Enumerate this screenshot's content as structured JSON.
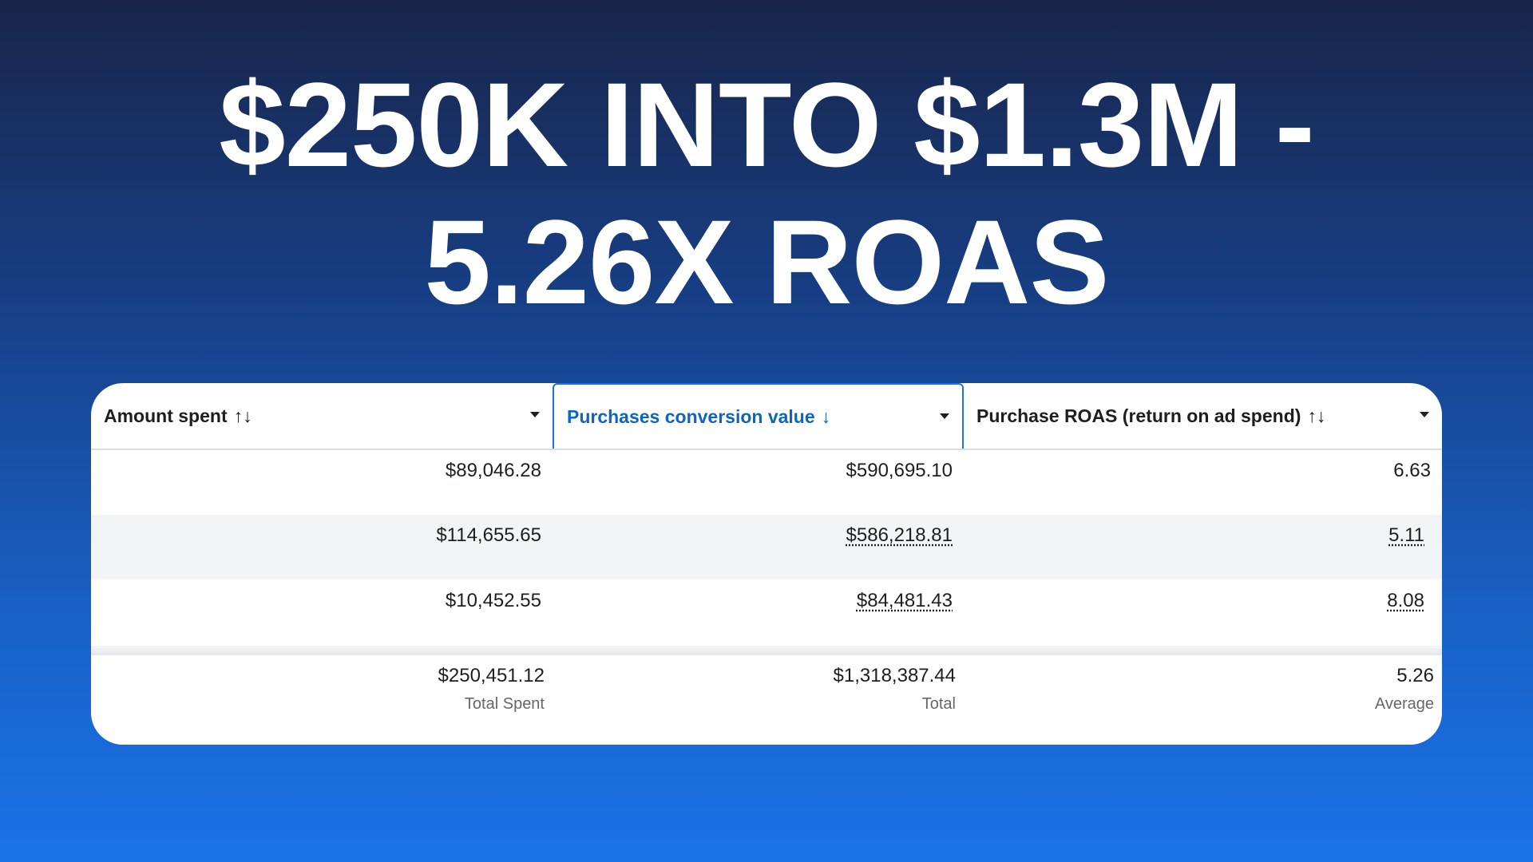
{
  "headline": {
    "line1": "$250K INTO $1.3M -",
    "line2": "5.26X ROAS"
  },
  "colors": {
    "accent": "#1a73e8",
    "active_header_text": "#0a66c2"
  },
  "table": {
    "columns": [
      {
        "label": "Amount spent",
        "sort_icon": "sort-both-icon",
        "sort_glyph": "↑↓"
      },
      {
        "label": "Purchases conversion value",
        "sort_icon": "sort-down-icon",
        "sort_glyph": "↓",
        "active": true
      },
      {
        "label": "Purchase ROAS (return on ad spend)",
        "sort_icon": "sort-both-icon",
        "sort_glyph": "↑↓"
      }
    ],
    "rows": [
      [
        "$89,046.28",
        "$590,695.10",
        "6.63"
      ],
      [
        "$114,655.65",
        "$586,218.81",
        "5.11"
      ],
      [
        "$10,452.55",
        "$84,481.43",
        "8.08"
      ]
    ],
    "totals": [
      {
        "value": "$250,451.12",
        "label": "Total Spent"
      },
      {
        "value": "$1,318,387.44",
        "label": "Total"
      },
      {
        "value": "5.26",
        "label": "Average"
      }
    ]
  }
}
